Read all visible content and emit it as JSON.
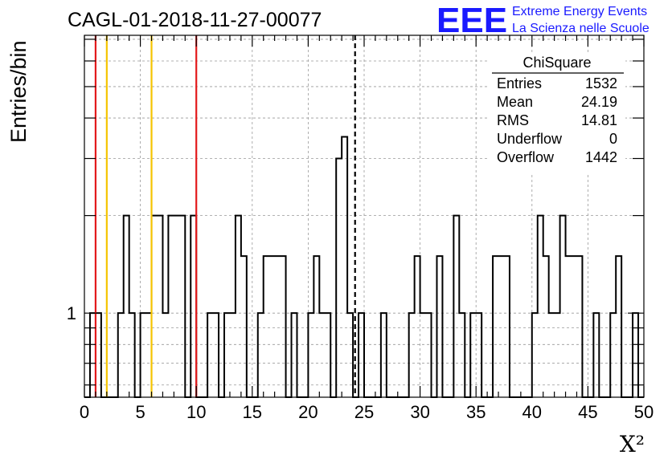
{
  "chart_data": {
    "type": "bar",
    "title": "CAGL-01-2018-11-27-00077",
    "xlabel": "X²",
    "ylabel": "Entries/bin",
    "xlim": [
      0,
      50
    ],
    "ylim": [
      0.55,
      7.2
    ],
    "y_scale": "log",
    "grid": true,
    "bin_width": 0.5,
    "x_ticks": [
      "0",
      "5",
      "10",
      "15",
      "20",
      "25",
      "30",
      "35",
      "40",
      "45",
      "50"
    ],
    "y_ticks": [
      "1"
    ],
    "bins": [
      {
        "x": 0.5,
        "value": 1
      },
      {
        "x": 1.0,
        "value": 1
      },
      {
        "x": 3.0,
        "value": 1
      },
      {
        "x": 3.5,
        "value": 2
      },
      {
        "x": 4.0,
        "value": 1
      },
      {
        "x": 5.0,
        "value": 1
      },
      {
        "x": 5.5,
        "value": 1
      },
      {
        "x": 6.0,
        "value": 2
      },
      {
        "x": 6.5,
        "value": 2
      },
      {
        "x": 7.0,
        "value": 1
      },
      {
        "x": 7.5,
        "value": 2
      },
      {
        "x": 8.0,
        "value": 2
      },
      {
        "x": 8.5,
        "value": 2
      },
      {
        "x": 9.5,
        "value": 2
      },
      {
        "x": 11.0,
        "value": 1
      },
      {
        "x": 11.5,
        "value": 1
      },
      {
        "x": 12.5,
        "value": 1
      },
      {
        "x": 13.0,
        "value": 1
      },
      {
        "x": 13.5,
        "value": 2
      },
      {
        "x": 14.0,
        "value": 1.5
      },
      {
        "x": 15.5,
        "value": 1
      },
      {
        "x": 16.0,
        "value": 1.5
      },
      {
        "x": 16.5,
        "value": 1.5
      },
      {
        "x": 17.0,
        "value": 1.5
      },
      {
        "x": 17.5,
        "value": 1.5
      },
      {
        "x": 18.5,
        "value": 1
      },
      {
        "x": 20.0,
        "value": 1
      },
      {
        "x": 20.5,
        "value": 1.5
      },
      {
        "x": 21.0,
        "value": 1
      },
      {
        "x": 21.5,
        "value": 1
      },
      {
        "x": 22.5,
        "value": 3
      },
      {
        "x": 23.0,
        "value": 3.5
      },
      {
        "x": 23.5,
        "value": 1
      },
      {
        "x": 24.5,
        "value": 1
      },
      {
        "x": 26.5,
        "value": 1
      },
      {
        "x": 29.0,
        "value": 1
      },
      {
        "x": 29.5,
        "value": 1.5
      },
      {
        "x": 30.0,
        "value": 1
      },
      {
        "x": 30.5,
        "value": 1
      },
      {
        "x": 31.5,
        "value": 1.5
      },
      {
        "x": 33.0,
        "value": 2
      },
      {
        "x": 33.5,
        "value": 1
      },
      {
        "x": 34.5,
        "value": 1
      },
      {
        "x": 35.0,
        "value": 1
      },
      {
        "x": 36.5,
        "value": 1.5
      },
      {
        "x": 37.0,
        "value": 1.5
      },
      {
        "x": 37.5,
        "value": 1.5
      },
      {
        "x": 40.0,
        "value": 1
      },
      {
        "x": 40.5,
        "value": 2
      },
      {
        "x": 41.0,
        "value": 1.5
      },
      {
        "x": 41.5,
        "value": 1
      },
      {
        "x": 42.0,
        "value": 1
      },
      {
        "x": 42.5,
        "value": 2
      },
      {
        "x": 43.0,
        "value": 1.5
      },
      {
        "x": 43.5,
        "value": 1.5
      },
      {
        "x": 44.0,
        "value": 1.5
      },
      {
        "x": 45.5,
        "value": 1
      },
      {
        "x": 47.0,
        "value": 1
      },
      {
        "x": 47.5,
        "value": 1.5
      },
      {
        "x": 49.0,
        "value": 1
      }
    ],
    "reference_lines": [
      {
        "x": 1,
        "color": "#e31a1c",
        "style": "solid"
      },
      {
        "x": 2,
        "color": "#f5c400",
        "style": "solid"
      },
      {
        "x": 6,
        "color": "#f5c400",
        "style": "solid"
      },
      {
        "x": 10,
        "color": "#e31a1c",
        "style": "solid"
      },
      {
        "x": 24.19,
        "color": "#000000",
        "style": "dashed"
      }
    ],
    "stats_box": {
      "title": "ChiSquare",
      "rows": [
        {
          "label": "Entries",
          "value": "1532"
        },
        {
          "label": "Mean",
          "value": "24.19"
        },
        {
          "label": "RMS",
          "value": "14.81"
        },
        {
          "label": "Underflow",
          "value": "0"
        },
        {
          "label": "Overflow",
          "value": "1442"
        }
      ]
    }
  },
  "logo": {
    "letters": "EEE",
    "line1": "Extreme Energy Events",
    "line2": "La Scienza nelle Scuole",
    "color": "#1a1aff"
  }
}
